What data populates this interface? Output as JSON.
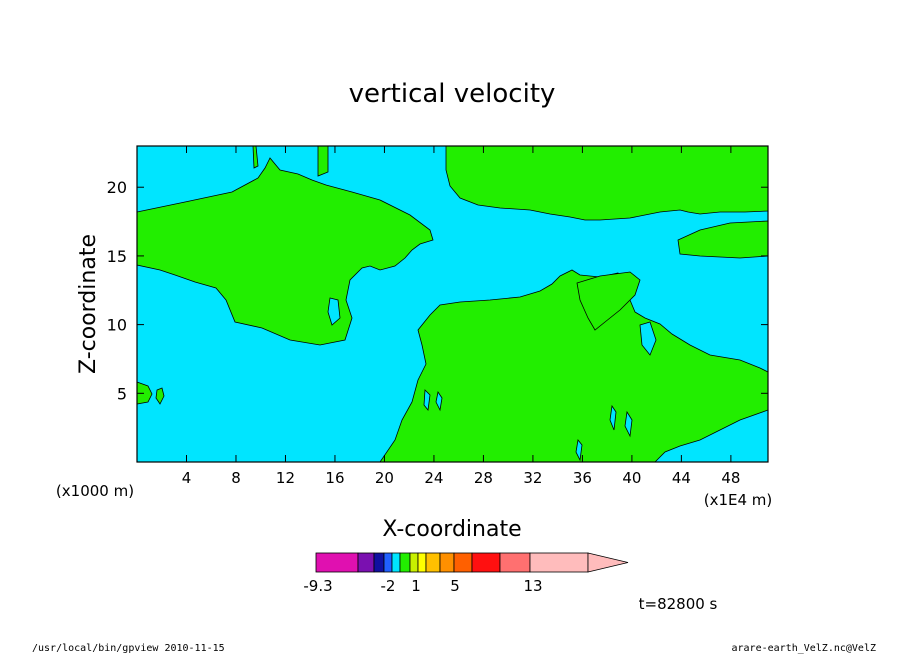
{
  "chart_data": {
    "type": "heatmap",
    "title": "vertical velocity",
    "xlabel": "X-coordinate",
    "ylabel": "Z-coordinate",
    "x_scale_note": "(x1E4 m)",
    "y_scale_note": "(x1000 m)",
    "xlim": [
      0,
      51
    ],
    "ylim": [
      0,
      23
    ],
    "x_ticks": [
      4,
      8,
      12,
      16,
      20,
      24,
      28,
      32,
      36,
      40,
      44,
      48
    ],
    "y_ticks": [
      5,
      10,
      15,
      20
    ],
    "background_level_color": "#00e5ff",
    "contour_fill_color": "#22ee00",
    "colorbar": {
      "colors": [
        "#e010b0",
        "#7a10b0",
        "#1010a0",
        "#2060ff",
        "#00e5ff",
        "#22ee00",
        "#c8f000",
        "#ffff00",
        "#ffc000",
        "#ff9000",
        "#ff6000",
        "#ff1010",
        "#ff7070",
        "#ffbcbc"
      ],
      "tick_labels": [
        "-9.3",
        "-2",
        "1",
        "5",
        "13"
      ],
      "extend": "max"
    },
    "time_label": "t=82800 s"
  },
  "footer": {
    "left": "/usr/local/bin/gpview   2010-11-15",
    "right": "arare-earth_VelZ.nc@VelZ"
  }
}
